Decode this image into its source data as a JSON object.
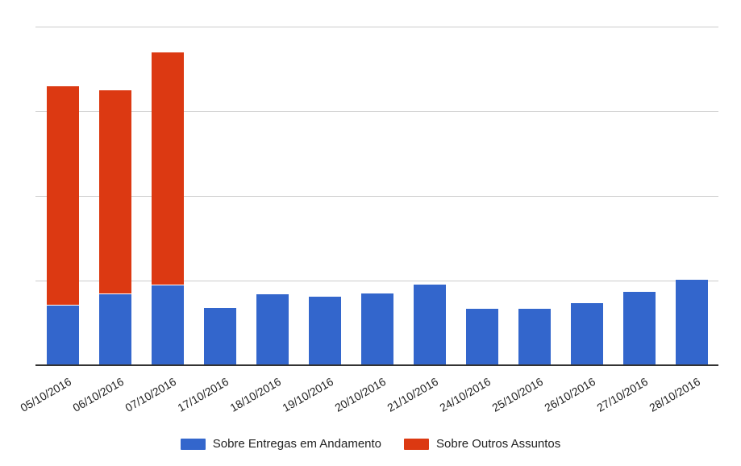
{
  "chart_data": {
    "type": "bar",
    "stacked": true,
    "orientation": "vertical",
    "title": "",
    "xlabel": "",
    "ylabel": "",
    "categories": [
      "05/10/2016",
      "06/10/2016",
      "07/10/2016",
      "17/10/2016",
      "18/10/2016",
      "19/10/2016",
      "20/10/2016",
      "21/10/2016",
      "24/10/2016",
      "25/10/2016",
      "26/10/2016",
      "27/10/2016",
      "28/10/2016"
    ],
    "series": [
      {
        "name": "Sobre Entregas em Andamento",
        "color": "#3366CC",
        "values": [
          0.7,
          0.84,
          0.94,
          0.68,
          0.84,
          0.81,
          0.85,
          0.95,
          0.67,
          0.67,
          0.73,
          0.87,
          1.01
        ]
      },
      {
        "name": "Sobre Outros Assuntos",
        "color": "#DC3912",
        "values": [
          2.59,
          2.41,
          2.75,
          0,
          0,
          0,
          0,
          0,
          0,
          0,
          0,
          0,
          0
        ]
      }
    ],
    "ylim": [
      0,
      4
    ],
    "grid": true,
    "gridline_values": [
      1,
      2,
      3,
      4
    ],
    "y_axis_tick_labels_visible": false,
    "value_unit_note": "no y-axis tick labels visible; values expressed in gridline units (1 unit = one gridline interval)",
    "x_label_rotation_deg": -30,
    "legend_position": "bottom"
  },
  "legend": {
    "items": [
      {
        "label": "Sobre Entregas em Andamento",
        "color": "#3366CC"
      },
      {
        "label": "Sobre Outros Assuntos",
        "color": "#DC3912"
      }
    ]
  },
  "style_colors": {
    "gridline": "#cccccc",
    "axis_line": "#333333",
    "label_text": "#222222",
    "background": "#ffffff"
  }
}
